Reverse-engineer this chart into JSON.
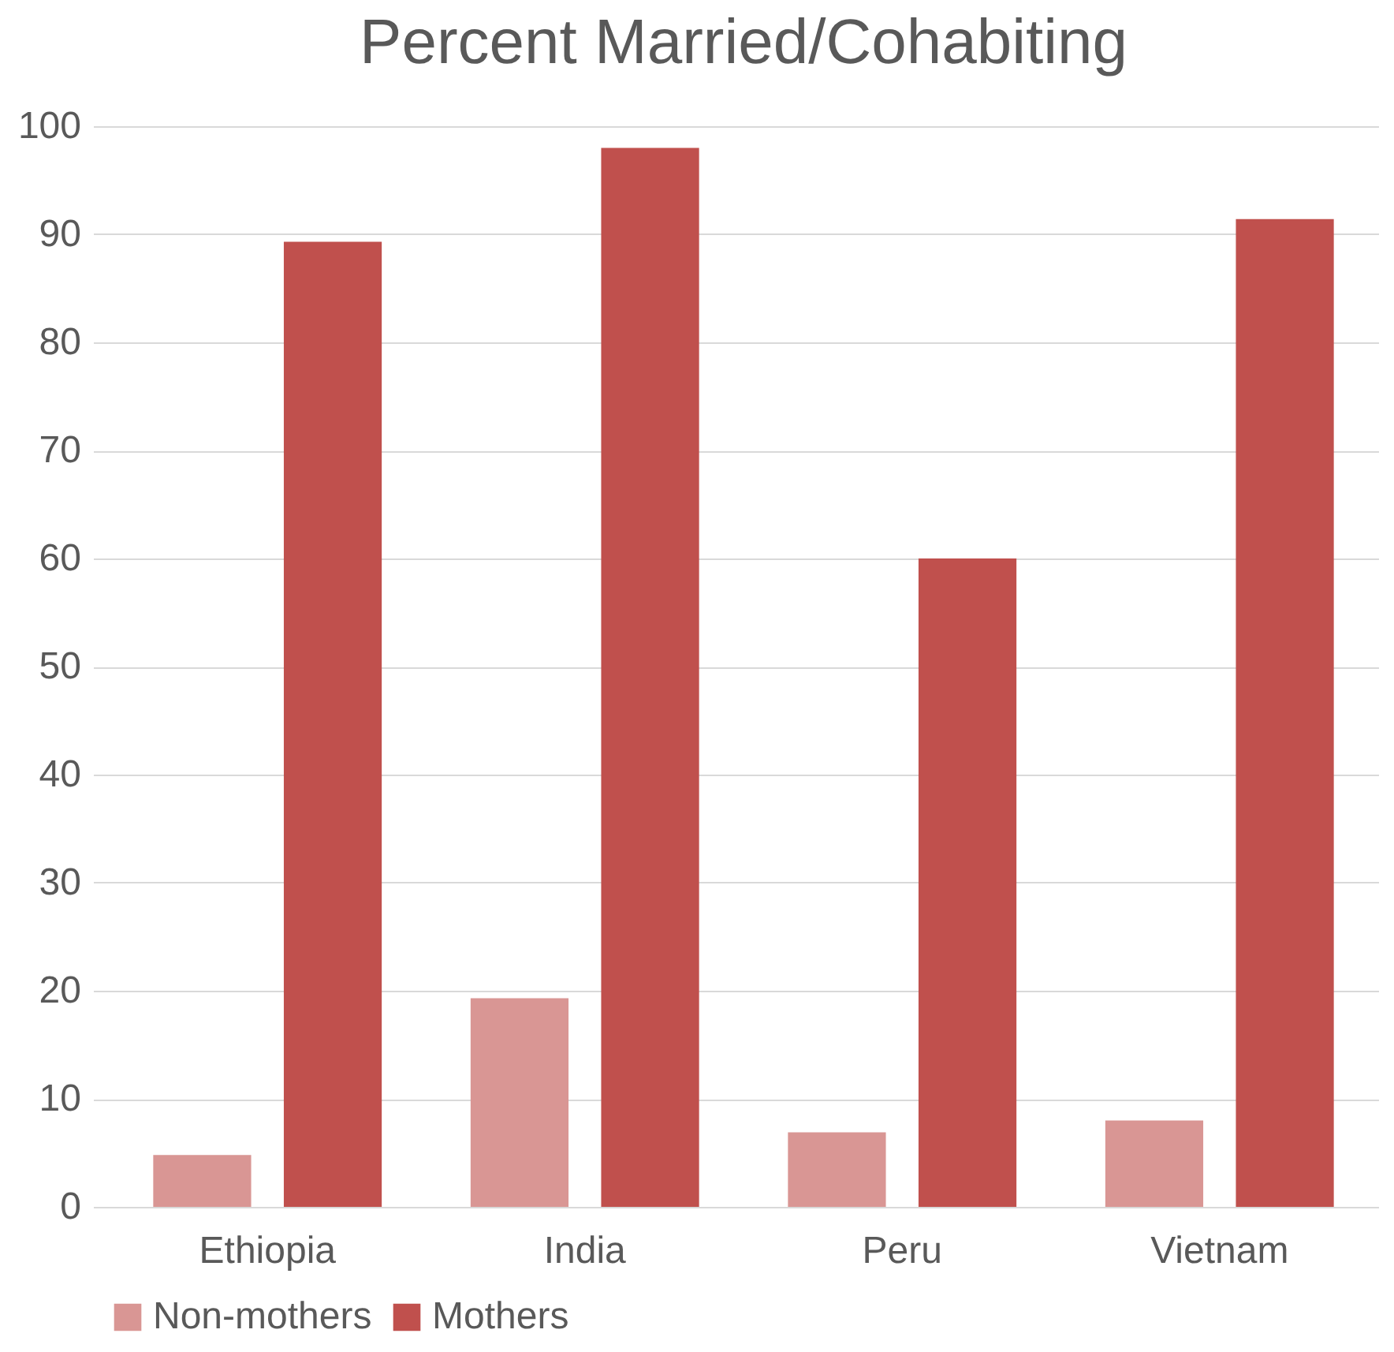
{
  "chart_data": {
    "type": "bar",
    "title": "Percent Married/Cohabiting",
    "categories": [
      "Ethiopia",
      "India",
      "Peru",
      "Vietnam"
    ],
    "series": [
      {
        "name": "Non-mothers",
        "color": "#d99694",
        "values": [
          4.8,
          19.3,
          6.9,
          8.0
        ]
      },
      {
        "name": "Mothers",
        "color": "#c0504d",
        "values": [
          89.3,
          98.0,
          60.0,
          91.4
        ]
      }
    ],
    "ylim": [
      0,
      100
    ],
    "yticks": [
      0,
      10,
      20,
      30,
      40,
      50,
      60,
      70,
      80,
      90,
      100
    ],
    "grid": "y",
    "legend": "bottom"
  }
}
